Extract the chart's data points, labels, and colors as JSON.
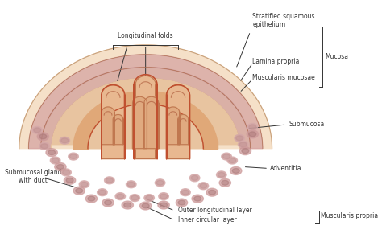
{
  "background_color": "#ffffff",
  "fig_width": 4.74,
  "fig_height": 3.01,
  "dpi": 100,
  "colors": {
    "outer_layer": "#e8c9a8",
    "submucosa": "#deb897",
    "mucosa_fold": "#c9956e",
    "fold_inner": "#e8b8a0",
    "gland_oval": "#d4a0a0",
    "gland_dark": "#c08080",
    "inner_line": "#b87060",
    "outer_wall": "#e0c0a0",
    "adventitia": "#f0d8b8"
  },
  "labels": {
    "longitudinal_folds": "Longitudinal folds",
    "stratified_squamous": "Stratified squamous\nepithelium",
    "lamina_propria": "Lamina propria",
    "muscularis_mucosae": "Muscularis mucosae",
    "mucosa": "Mucosa",
    "submucosa": "Submucosa",
    "adventitia": "Adventitia",
    "submucosal_gland": "Submucosal gland\nwith duct",
    "outer_longitudinal": "Outer longitudinal layer",
    "inner_circular": "Inner circular layer",
    "muscularis_propria": "Muscularis propria"
  },
  "label_fontsize": 5.5,
  "label_color": "#333333"
}
